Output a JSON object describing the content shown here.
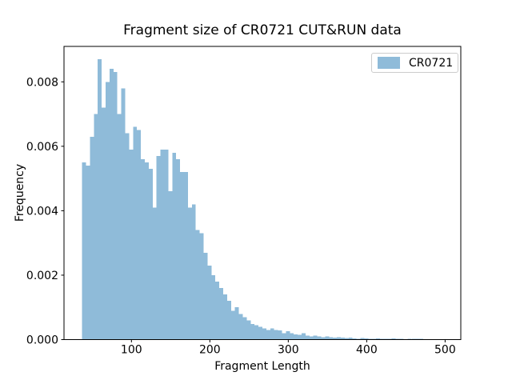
{
  "figure": {
    "background": "#ffffff"
  },
  "colors": {
    "bar": "#8fbbd9",
    "axis": "#000000",
    "text": "#000000",
    "legend_border": "#cccccc"
  },
  "chart_data": {
    "type": "bar",
    "subtype": "histogram",
    "title": "Fragment size of CR0721 CUT&RUN data",
    "xlabel": "Fragment Length",
    "ylabel": "Frequency",
    "legend": [
      "CR0721"
    ],
    "legend_position": "upper right",
    "grid": false,
    "xlim": [
      14,
      520
    ],
    "ylim": [
      0,
      0.0091
    ],
    "x_ticks": [
      100,
      200,
      300,
      400,
      500
    ],
    "y_ticks": [
      "0.000",
      "0.002",
      "0.004",
      "0.006",
      "0.008"
    ],
    "bin_start": 37,
    "bin_width": 5,
    "values": [
      0.0055,
      0.0054,
      0.0063,
      0.007,
      0.0087,
      0.0072,
      0.008,
      0.0084,
      0.0083,
      0.007,
      0.0078,
      0.0064,
      0.0059,
      0.0066,
      0.0065,
      0.0056,
      0.0055,
      0.0053,
      0.0041,
      0.0057,
      0.0059,
      0.0059,
      0.0046,
      0.0058,
      0.0056,
      0.0052,
      0.0052,
      0.0041,
      0.0042,
      0.0034,
      0.0033,
      0.0027,
      0.0023,
      0.002,
      0.0018,
      0.0016,
      0.0014,
      0.0012,
      0.0009,
      0.001,
      0.0008,
      0.0007,
      0.0006,
      0.00048,
      0.00045,
      0.0004,
      0.00035,
      0.0003,
      0.00035,
      0.0003,
      0.00028,
      0.0002,
      0.00026,
      0.0002,
      0.00016,
      0.00015,
      0.0002,
      0.00013,
      0.0001,
      0.00013,
      0.0001,
      8e-05,
      0.0001,
      8e-05,
      6e-05,
      8e-05,
      6e-05,
      5e-05,
      6e-05,
      4e-05,
      3e-05,
      5e-05,
      4e-05,
      2e-05,
      3e-05,
      4e-05,
      2e-05,
      3e-05,
      2e-05,
      4e-05,
      3e-05,
      2e-05,
      1e-05,
      3e-05,
      2e-05,
      3e-05,
      2e-05,
      0,
      0,
      0,
      0,
      0
    ]
  }
}
